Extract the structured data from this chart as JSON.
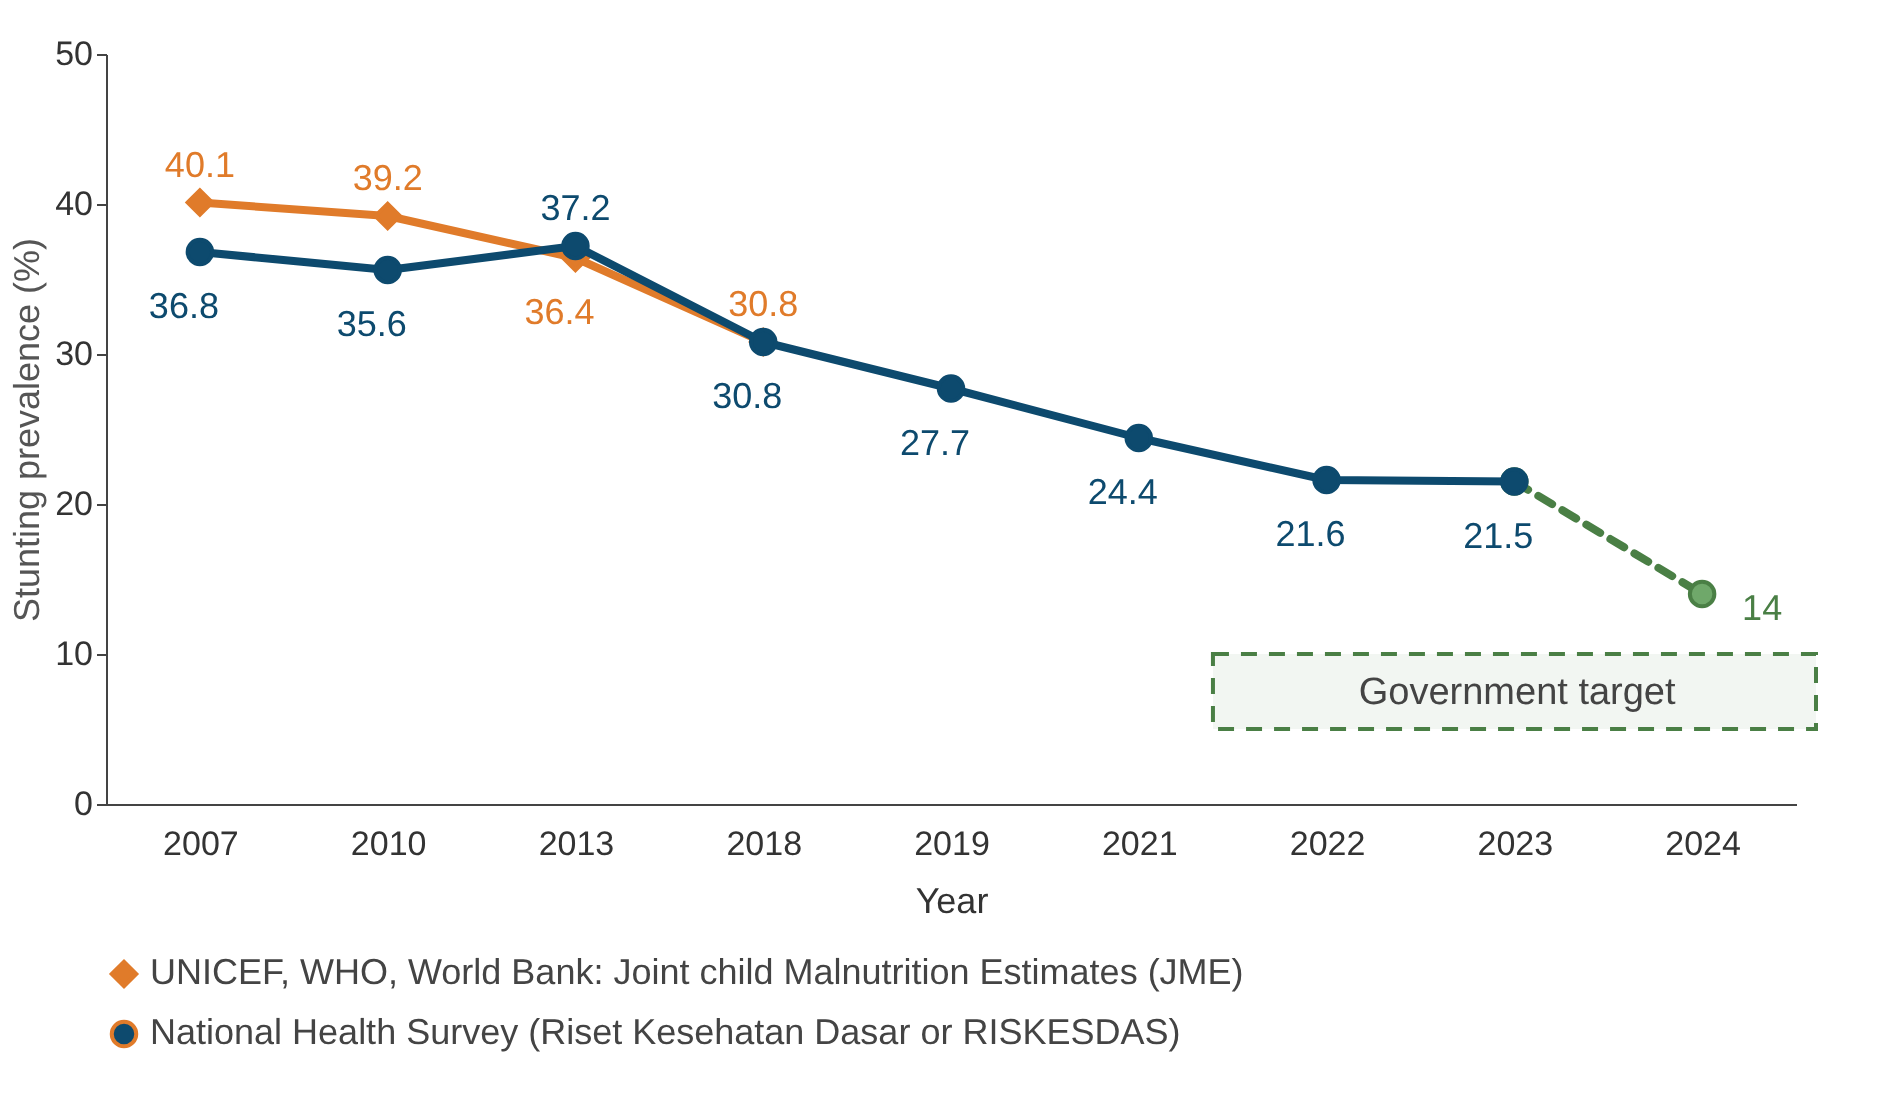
{
  "chart_data": {
    "type": "line",
    "xlabel": "Year",
    "ylabel": "Stunting prevalence (%)",
    "categories": [
      "2007",
      "2010",
      "2013",
      "2018",
      "2019",
      "2021",
      "2022",
      "2023",
      "2024"
    ],
    "series": [
      {
        "name": "UNICEF, WHO, World Bank: Joint child Malnutrition Estimates (JME)",
        "color": "#e07b2a",
        "marker": "diamond",
        "values": [
          40.1,
          39.2,
          36.4,
          30.8,
          null,
          null,
          null,
          null,
          null
        ],
        "value_labels": [
          "40.1",
          "39.2",
          "36.4",
          "30.8",
          null,
          null,
          null,
          null,
          null
        ]
      },
      {
        "name": "National Health Survey (Riset Kesehatan Dasar or RISKESDAS)",
        "color": "#0d4a6e",
        "marker": "circle",
        "values": [
          36.8,
          35.6,
          37.2,
          30.8,
          27.7,
          24.4,
          21.6,
          21.5,
          null
        ],
        "value_labels": [
          "36.8",
          "35.6",
          "37.2",
          "30.8",
          "27.7",
          "24.4",
          "21.6",
          "21.5",
          null
        ]
      },
      {
        "color": "#4a7f45",
        "marker": "circle",
        "line_style": "dashed",
        "values": [
          null,
          null,
          null,
          null,
          null,
          null,
          null,
          21.5,
          14
        ],
        "value_labels": [
          null,
          null,
          null,
          null,
          null,
          null,
          null,
          null,
          "14"
        ]
      }
    ],
    "ylim": [
      0,
      50
    ],
    "yticks": [
      0,
      10,
      20,
      30,
      40,
      50
    ],
    "legend": "bottom",
    "bands": [
      {
        "axis": "y",
        "from": 5,
        "to": 10,
        "label": "Government target",
        "color": "#4a7f45"
      }
    ]
  }
}
